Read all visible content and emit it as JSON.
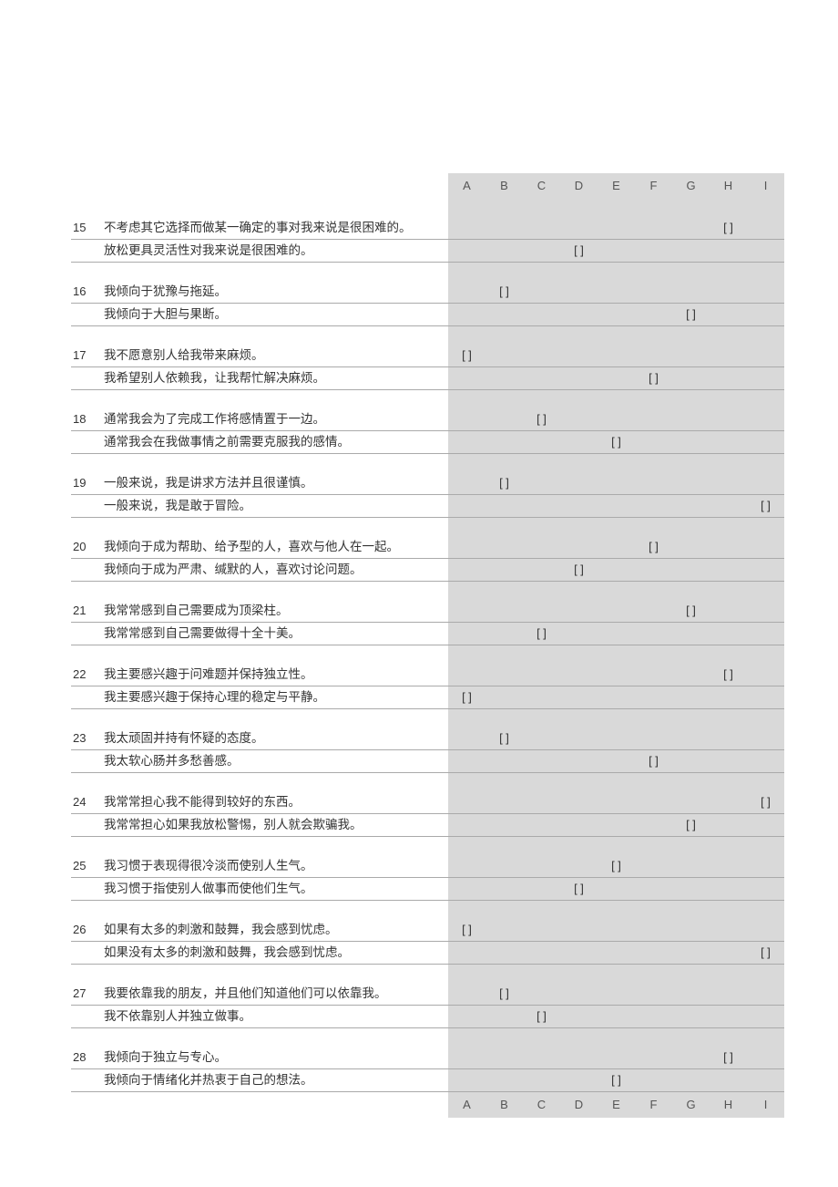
{
  "columns": [
    "A",
    "B",
    "C",
    "D",
    "E",
    "F",
    "G",
    "H",
    "I"
  ],
  "bracket": "[   ]",
  "questions": [
    {
      "num": "15",
      "a": "不考虑其它选择而做某一确定的事对我来说是很困难的。",
      "a_mark_col": 7,
      "b": "放松更具灵活性对我来说是很困难的。",
      "b_mark_col": 3
    },
    {
      "num": "16",
      "a": "我倾向于犹豫与拖延。",
      "a_mark_col": 1,
      "b": "我倾向于大胆与果断。",
      "b_mark_col": 6
    },
    {
      "num": "17",
      "a": "我不愿意别人给我带来麻烦。",
      "a_mark_col": 0,
      "b": "我希望别人依赖我，让我帮忙解决麻烦。",
      "b_mark_col": 5
    },
    {
      "num": "18",
      "a": "通常我会为了完成工作将感情置于一边。",
      "a_mark_col": 2,
      "b": "通常我会在我做事情之前需要克服我的感情。",
      "b_mark_col": 4
    },
    {
      "num": "19",
      "a": "一般来说，我是讲求方法并且很谨慎。",
      "a_mark_col": 1,
      "b": "一般来说，我是敢于冒险。",
      "b_mark_col": 8
    },
    {
      "num": "20",
      "a": "我倾向于成为帮助、给予型的人，喜欢与他人在一起。",
      "a_mark_col": 5,
      "b": "我倾向于成为严肃、缄默的人，喜欢讨论问题。",
      "b_mark_col": 3
    },
    {
      "num": "21",
      "a": "我常常感到自己需要成为顶梁柱。",
      "a_mark_col": 6,
      "b": "我常常感到自己需要做得十全十美。",
      "b_mark_col": 2
    },
    {
      "num": "22",
      "a": "我主要感兴趣于问难题并保持独立性。",
      "a_mark_col": 7,
      "b": "我主要感兴趣于保持心理的稳定与平静。",
      "b_mark_col": 0
    },
    {
      "num": "23",
      "a": "我太顽固并持有怀疑的态度。",
      "a_mark_col": 1,
      "b": "我太软心肠并多愁善感。",
      "b_mark_col": 5
    },
    {
      "num": "24",
      "a": "我常常担心我不能得到较好的东西。",
      "a_mark_col": 8,
      "b": "我常常担心如果我放松警惕，别人就会欺骗我。",
      "b_mark_col": 6
    },
    {
      "num": "25",
      "a": "我习惯于表现得很冷淡而使别人生气。",
      "a_mark_col": 4,
      "b": "我习惯于指使别人做事而使他们生气。",
      "b_mark_col": 3
    },
    {
      "num": "26",
      "a": "如果有太多的刺激和鼓舞，我会感到忧虑。",
      "a_mark_col": 0,
      "b": "如果没有太多的刺激和鼓舞，我会感到忧虑。",
      "b_mark_col": 8
    },
    {
      "num": "27",
      "a": "我要依靠我的朋友，并且他们知道他们可以依靠我。",
      "a_mark_col": 1,
      "b": "我不依靠别人并独立做事。",
      "b_mark_col": 2
    },
    {
      "num": "28",
      "a": "我倾向于独立与专心。",
      "a_mark_col": 7,
      "b": "我倾向于情绪化并热衷于自己的想法。",
      "b_mark_col": 4
    }
  ]
}
